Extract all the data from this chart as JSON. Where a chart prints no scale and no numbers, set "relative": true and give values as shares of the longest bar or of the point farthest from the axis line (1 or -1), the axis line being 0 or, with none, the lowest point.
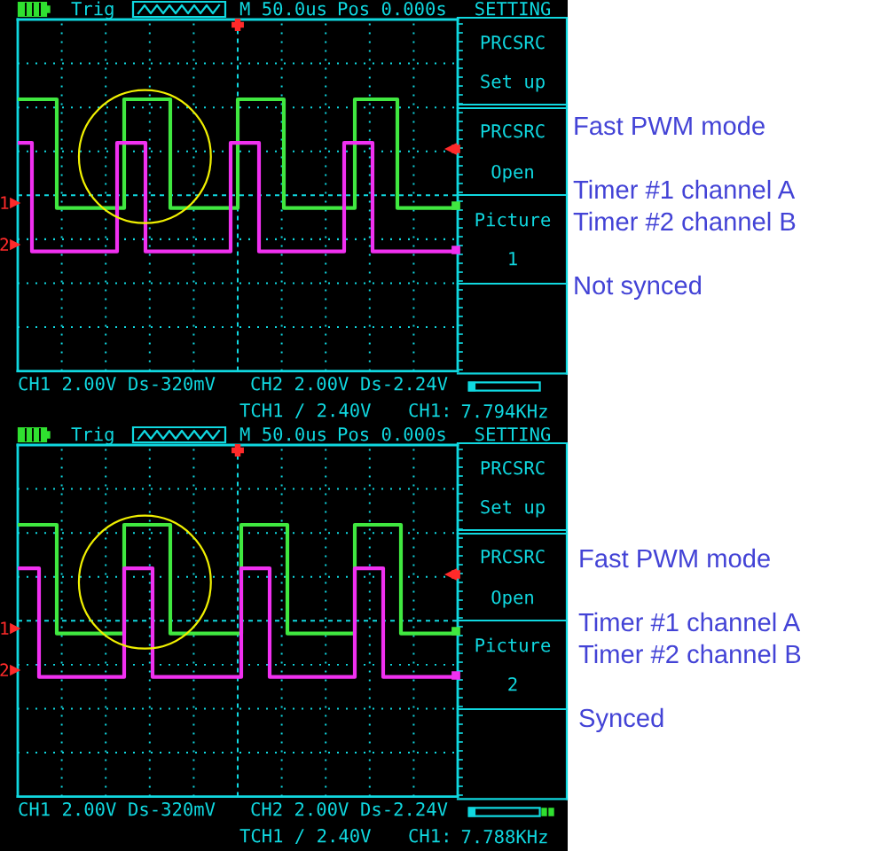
{
  "chart_data": [
    {
      "type": "step",
      "relative": true,
      "grid": true,
      "tick_labels": false,
      "categories": [
        null,
        null,
        null,
        null,
        null,
        null,
        null,
        null,
        null,
        null,
        null,
        null,
        null,
        null,
        null,
        null,
        null,
        null,
        null,
        null,
        null,
        null,
        null,
        null,
        null,
        null,
        null,
        null,
        null,
        null,
        null,
        null,
        null,
        null,
        null,
        null,
        null,
        null,
        null,
        null,
        null,
        null,
        null,
        null,
        null,
        null,
        null,
        null,
        null,
        null,
        null,
        null,
        null,
        null,
        null,
        null,
        null,
        null,
        null,
        null,
        null,
        null,
        null,
        null,
        null,
        null,
        null,
        null,
        null,
        null,
        null,
        null,
        null,
        null,
        null,
        null,
        null,
        null,
        null,
        null,
        null,
        null,
        null,
        null,
        null,
        null,
        null,
        null,
        null,
        null,
        null,
        null,
        null,
        null,
        null,
        null,
        null,
        null,
        null,
        null,
        null,
        null,
        null,
        null,
        null,
        null,
        null,
        null,
        null,
        null,
        null,
        null,
        null,
        null,
        null,
        null,
        null,
        null,
        null,
        null,
        null,
        null,
        null,
        null
      ],
      "series": [
        {
          "color": "#40e840",
          "values": [
            1,
            1,
            1,
            1,
            1,
            1,
            1,
            1,
            1,
            1,
            1,
            0.6,
            0.6,
            0.6,
            0.6,
            0.6,
            0.6,
            0.6,
            0.6,
            0.6,
            0.6,
            0.6,
            0.6,
            0.6,
            0.6,
            0.6,
            0.6,
            0.6,
            0.6,
            0.6,
            1,
            1,
            1,
            1,
            1,
            1,
            1,
            1,
            1,
            1,
            1,
            1,
            1,
            0.6,
            0.6,
            0.6,
            0.6,
            0.6,
            0.6,
            0.6,
            0.6,
            0.6,
            0.6,
            0.6,
            0.6,
            0.6,
            0.6,
            0.6,
            0.6,
            0.6,
            0.6,
            0.6,
            1,
            1,
            1,
            1,
            1,
            1,
            1,
            1,
            1,
            1,
            1,
            1,
            1,
            0.6,
            0.6,
            0.6,
            0.6,
            0.6,
            0.6,
            0.6,
            0.6,
            0.6,
            0.6,
            0.6,
            0.6,
            0.6,
            0.6,
            0.6,
            0.6,
            0.6,
            0.6,
            0.6,
            0.6,
            1,
            1,
            1,
            1,
            1,
            1,
            1,
            1,
            1,
            1,
            1,
            1,
            0.6,
            0.6,
            0.6,
            0.6,
            0.6,
            0.6,
            0.6,
            0.6,
            0.6,
            0.6,
            0.6,
            0.6,
            0.6,
            0.6,
            0.6,
            0.6,
            0.6
          ]
        },
        {
          "color": "#f030f0",
          "values": [
            0.84,
            0.84,
            0.84,
            0.84,
            0.44,
            0.44,
            0.44,
            0.44,
            0.44,
            0.44,
            0.44,
            0.44,
            0.44,
            0.44,
            0.44,
            0.44,
            0.44,
            0.44,
            0.44,
            0.44,
            0.44,
            0.44,
            0.44,
            0.44,
            0.44,
            0.44,
            0.44,
            0.44,
            0.84,
            0.84,
            0.84,
            0.84,
            0.84,
            0.84,
            0.84,
            0.84,
            0.44,
            0.44,
            0.44,
            0.44,
            0.44,
            0.44,
            0.44,
            0.44,
            0.44,
            0.44,
            0.44,
            0.44,
            0.44,
            0.44,
            0.44,
            0.44,
            0.44,
            0.44,
            0.44,
            0.44,
            0.44,
            0.44,
            0.44,
            0.44,
            0.84,
            0.84,
            0.84,
            0.84,
            0.84,
            0.84,
            0.84,
            0.84,
            0.44,
            0.44,
            0.44,
            0.44,
            0.44,
            0.44,
            0.44,
            0.44,
            0.44,
            0.44,
            0.44,
            0.44,
            0.44,
            0.44,
            0.44,
            0.44,
            0.44,
            0.44,
            0.44,
            0.44,
            0.44,
            0.44,
            0.44,
            0.44,
            0.84,
            0.84,
            0.84,
            0.84,
            0.84,
            0.84,
            0.84,
            0.84,
            0.44,
            0.44,
            0.44,
            0.44,
            0.44,
            0.44,
            0.44,
            0.44,
            0.44,
            0.44,
            0.44,
            0.44,
            0.44,
            0.44,
            0.44,
            0.44,
            0.44,
            0.44,
            0.44,
            0.44,
            0.44,
            0.44,
            0.44,
            0.44
          ]
        }
      ],
      "annotations": [
        "Trig",
        "M 50.0us",
        "Pos 0.000s",
        "SETTING",
        "PRCSRC",
        "Set up",
        "PRCSRC",
        "Open",
        "Picture",
        "1",
        "CH1 2.00V",
        "Ds-320mV",
        "CH2 2.00V",
        "Ds-2.24V",
        "TCH1 / 2.40V",
        "CH1:",
        "7.794KHz",
        "1",
        "2",
        "Fast PWM mode",
        "Timer #1 channel A",
        "Timer #2 channel B",
        "Not synced"
      ]
    },
    {
      "type": "step",
      "relative": true,
      "grid": true,
      "tick_labels": false,
      "categories": [
        null,
        null,
        null,
        null,
        null,
        null,
        null,
        null,
        null,
        null,
        null,
        null,
        null,
        null,
        null,
        null,
        null,
        null,
        null,
        null,
        null,
        null,
        null,
        null,
        null,
        null,
        null,
        null,
        null,
        null,
        null,
        null,
        null,
        null,
        null,
        null,
        null,
        null,
        null,
        null,
        null,
        null,
        null,
        null,
        null,
        null,
        null,
        null,
        null,
        null,
        null,
        null,
        null,
        null,
        null,
        null,
        null,
        null,
        null,
        null,
        null,
        null,
        null,
        null,
        null,
        null,
        null,
        null,
        null,
        null,
        null,
        null,
        null,
        null,
        null,
        null,
        null,
        null,
        null,
        null,
        null,
        null,
        null,
        null,
        null,
        null,
        null,
        null,
        null,
        null,
        null,
        null,
        null,
        null,
        null,
        null,
        null,
        null,
        null,
        null,
        null,
        null,
        null,
        null,
        null,
        null,
        null,
        null,
        null,
        null,
        null,
        null,
        null,
        null,
        null,
        null,
        null,
        null,
        null,
        null,
        null,
        null,
        null,
        null
      ],
      "series": [
        {
          "color": "#40e840",
          "values": [
            1,
            1,
            1,
            1,
            1,
            1,
            1,
            1,
            1,
            1,
            1,
            0.6,
            0.6,
            0.6,
            0.6,
            0.6,
            0.6,
            0.6,
            0.6,
            0.6,
            0.6,
            0.6,
            0.6,
            0.6,
            0.6,
            0.6,
            0.6,
            0.6,
            0.6,
            0.6,
            1,
            1,
            1,
            1,
            1,
            1,
            1,
            1,
            1,
            1,
            1,
            1,
            1,
            0.6,
            0.6,
            0.6,
            0.6,
            0.6,
            0.6,
            0.6,
            0.6,
            0.6,
            0.6,
            0.6,
            0.6,
            0.6,
            0.6,
            0.6,
            0.6,
            0.6,
            0.6,
            0.6,
            0.6,
            1,
            1,
            1,
            1,
            1,
            1,
            1,
            1,
            1,
            1,
            1,
            1,
            1,
            0.6,
            0.6,
            0.6,
            0.6,
            0.6,
            0.6,
            0.6,
            0.6,
            0.6,
            0.6,
            0.6,
            0.6,
            0.6,
            0.6,
            0.6,
            0.6,
            0.6,
            0.6,
            0.6,
            1,
            1,
            1,
            1,
            1,
            1,
            1,
            1,
            1,
            1,
            1,
            1,
            1,
            0.6,
            0.6,
            0.6,
            0.6,
            0.6,
            0.6,
            0.6,
            0.6,
            0.6,
            0.6,
            0.6,
            0.6,
            0.6,
            0.6,
            0.6,
            0.6
          ]
        },
        {
          "color": "#f030f0",
          "values": [
            0.84,
            0.84,
            0.84,
            0.84,
            0.84,
            0.84,
            0.44,
            0.44,
            0.44,
            0.44,
            0.44,
            0.44,
            0.44,
            0.44,
            0.44,
            0.44,
            0.44,
            0.44,
            0.44,
            0.44,
            0.44,
            0.44,
            0.44,
            0.44,
            0.44,
            0.44,
            0.44,
            0.44,
            0.44,
            0.44,
            0.84,
            0.84,
            0.84,
            0.84,
            0.84,
            0.84,
            0.84,
            0.84,
            0.44,
            0.44,
            0.44,
            0.44,
            0.44,
            0.44,
            0.44,
            0.44,
            0.44,
            0.44,
            0.44,
            0.44,
            0.44,
            0.44,
            0.44,
            0.44,
            0.44,
            0.44,
            0.44,
            0.44,
            0.44,
            0.44,
            0.44,
            0.44,
            0.44,
            0.84,
            0.84,
            0.84,
            0.84,
            0.84,
            0.84,
            0.84,
            0.84,
            0.44,
            0.44,
            0.44,
            0.44,
            0.44,
            0.44,
            0.44,
            0.44,
            0.44,
            0.44,
            0.44,
            0.44,
            0.44,
            0.44,
            0.44,
            0.44,
            0.44,
            0.44,
            0.44,
            0.44,
            0.44,
            0.44,
            0.44,
            0.44,
            0.84,
            0.84,
            0.84,
            0.84,
            0.84,
            0.84,
            0.84,
            0.84,
            0.44,
            0.44,
            0.44,
            0.44,
            0.44,
            0.44,
            0.44,
            0.44,
            0.44,
            0.44,
            0.44,
            0.44,
            0.44,
            0.44,
            0.44,
            0.44,
            0.44,
            0.44,
            0.44,
            0.44,
            0.44
          ]
        }
      ],
      "annotations": [
        "Trig",
        "M 50.0us",
        "Pos 0.000s",
        "SETTING",
        "PRCSRC",
        "Set up",
        "PRCSRC",
        "Open",
        "Picture",
        "2",
        "CH1 2.00V",
        "Ds-320mV",
        "CH2 2.00V",
        "Ds-2.24V",
        "TCH1 / 2.40V",
        "CH1:",
        "7.788KHz",
        "1",
        "2",
        "Fast PWM mode",
        "Timer #1 channel A",
        "Timer #2 channel B",
        "Synced"
      ]
    }
  ]
}
